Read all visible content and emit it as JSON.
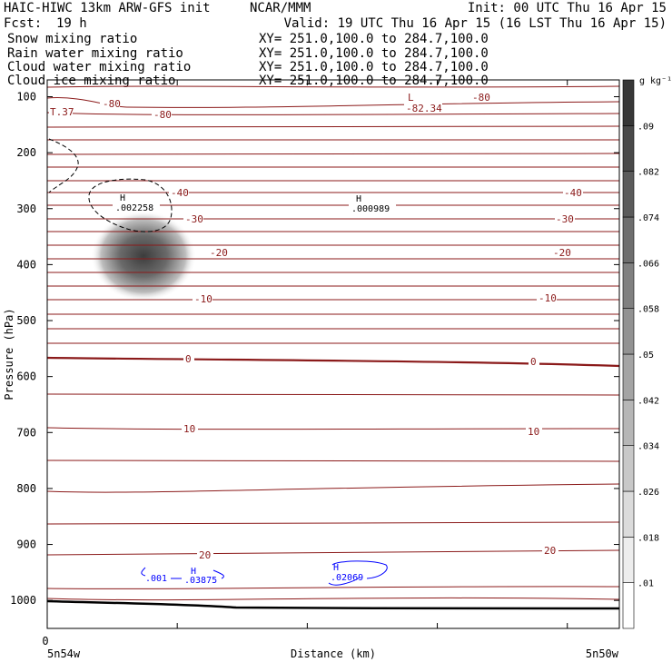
{
  "header": {
    "title": "HAIC-HIWC 13km ARW-GFS init",
    "org": "NCAR/MMM",
    "init": "Init: 00 UTC Thu 16 Apr 15",
    "fcst_label": "Fcst:",
    "fcst_value": "19 h",
    "valid": "Valid: 19 UTC Thu 16 Apr 15 (16 LST Thu 16 Apr 15)"
  },
  "fields": [
    {
      "name": "Snow mixing ratio",
      "xy": "XY= 251.0,100.0 to 284.7,100.0",
      "color": "#000000"
    },
    {
      "name": "Rain water mixing ratio",
      "xy": "XY= 251.0,100.0 to 284.7,100.0",
      "color": "#ff0000"
    },
    {
      "name": "Cloud water mixing ratio",
      "xy": "XY= 251.0,100.0 to 284.7,100.0",
      "color": "#0000ff"
    },
    {
      "name": "Cloud ice mixing ratio",
      "xy": "XY= 251.0,100.0 to 284.7,100.0",
      "color": "#000000"
    }
  ],
  "colorbar": {
    "unit": "g kg⁻¹",
    "labels": [
      ".01",
      ".018",
      ".026",
      ".034",
      ".042",
      ".05",
      ".058",
      ".066",
      ".074",
      ".082",
      ".09"
    ]
  },
  "chart_data": {
    "type": "contour",
    "xlabel": "Distance (km)",
    "ylabel": "Pressure (hPa)",
    "x_ticks": [
      "0"
    ],
    "x_endpoints": [
      "5n54w",
      "5n50w"
    ],
    "ylim": [
      1050,
      70
    ],
    "y_ticks": [
      100,
      200,
      300,
      400,
      500,
      600,
      700,
      800,
      900,
      1000
    ],
    "temperature_contour_labels": [
      {
        "text": "-80"
      },
      {
        "text": "-80"
      },
      {
        "text": "-80"
      },
      {
        "text": "-40"
      },
      {
        "text": "-40"
      },
      {
        "text": "-30"
      },
      {
        "text": "-30"
      },
      {
        "text": "-20"
      },
      {
        "text": "-20"
      },
      {
        "text": "-10"
      },
      {
        "text": "-10"
      },
      {
        "text": "0"
      },
      {
        "text": "0"
      },
      {
        "text": "10"
      },
      {
        "text": "10"
      },
      {
        "text": "20"
      },
      {
        "text": "20"
      }
    ],
    "temperature_extrema": [
      {
        "kind": "L",
        "value": "-82.34"
      },
      {
        "kind": "",
        "value": "T.37"
      }
    ],
    "snow_maxima": [
      {
        "kind": "H",
        "value": ".002258"
      },
      {
        "kind": "H",
        "value": ".000989"
      }
    ],
    "cloud_water_labels": [
      {
        "kind": "",
        "value": ".001"
      },
      {
        "kind": "H",
        "value": ".03875"
      },
      {
        "kind": "H",
        "value": ".02069"
      }
    ]
  }
}
